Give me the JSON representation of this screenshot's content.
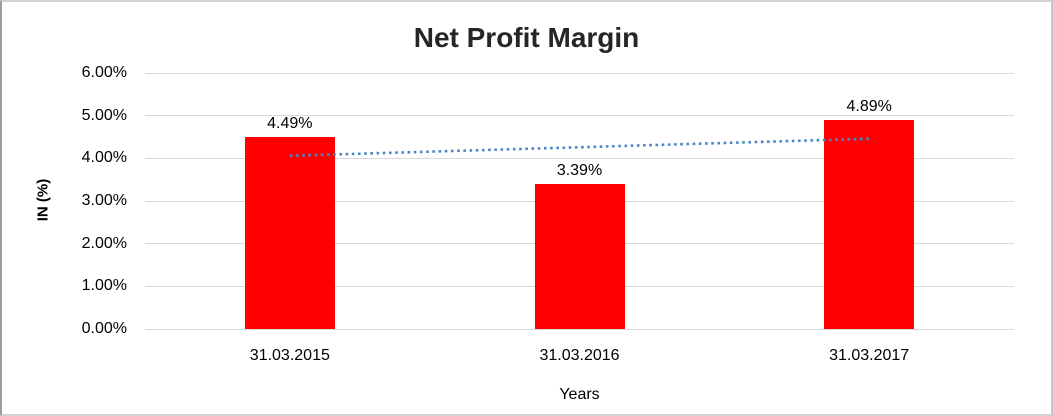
{
  "chart_data": {
    "type": "bar",
    "title": "Net Profit Margin",
    "xlabel": "Years",
    "ylabel": "IN (%)",
    "categories": [
      "31.03.2015",
      "31.03.2016",
      "31.03.2017"
    ],
    "series": [
      {
        "name": "Net Profit Margin",
        "values": [
          4.49,
          3.39,
          4.89
        ]
      }
    ],
    "data_labels": [
      "4.49%",
      "3.39%",
      "4.89%"
    ],
    "y_ticks": [
      {
        "value": 0,
        "label": "0.00%"
      },
      {
        "value": 1,
        "label": "1.00%"
      },
      {
        "value": 2,
        "label": "2.00%"
      },
      {
        "value": 3,
        "label": "3.00%"
      },
      {
        "value": 4,
        "label": "4.00%"
      },
      {
        "value": 5,
        "label": "5.00%"
      },
      {
        "value": 6,
        "label": "6.00%"
      }
    ],
    "ylim": [
      0,
      6
    ],
    "grid": true,
    "legend": "none",
    "colors": {
      "bar": "#ff0000",
      "gridline": "#d9d9d9",
      "trendline": "#4a86c8",
      "title_text": "#262626",
      "axis_text": "#000000"
    },
    "trendline": {
      "type": "linear",
      "style": "dotted",
      "start_value": 4.06,
      "end_value": 4.46
    }
  }
}
